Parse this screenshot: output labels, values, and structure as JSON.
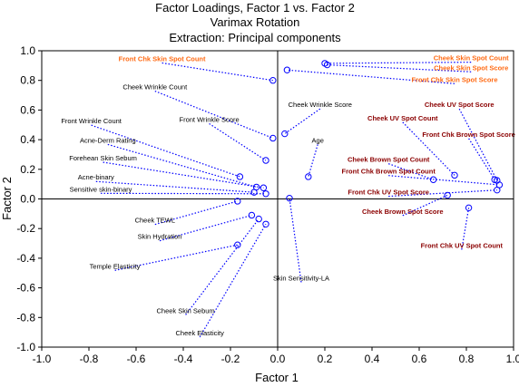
{
  "colors": {
    "marker": "#0000ff",
    "leader": "#0000ff",
    "label_default": "#000000",
    "label_red": "#8b0000",
    "label_orange": "#ff6a13",
    "axis": "#000000",
    "grid": "#c8c8c8"
  },
  "chart_data": {
    "type": "scatter",
    "title": "Factor Loadings, Factor 1 vs. Factor 2",
    "subtitle": "Varimax Rotation",
    "subtitle2": "Extraction: Principal components",
    "xlabel": "Factor 1",
    "ylabel": "Factor 2",
    "xlim": [
      -1.0,
      1.0
    ],
    "ylim": [
      -1.0,
      1.0
    ],
    "xticks": [
      -1.0,
      -0.8,
      -0.6,
      -0.4,
      -0.2,
      0.0,
      0.2,
      0.4,
      0.6,
      0.8,
      1.0
    ],
    "yticks": [
      -1.0,
      -0.8,
      -0.6,
      -0.4,
      -0.2,
      0.0,
      0.2,
      0.4,
      0.6,
      0.8,
      1.0
    ],
    "xtick_labels": [
      "-1.0",
      "-0.8",
      "-0.6",
      "-0.4",
      "-0.2",
      "0.0",
      "0.2",
      "0.4",
      "0.6",
      "0.8",
      "1.0"
    ],
    "ytick_labels": [
      "-1.0",
      "-0.8",
      "-0.6",
      "-0.4",
      "-0.2",
      "0.0",
      "0.2",
      "0.4",
      "0.6",
      "0.8",
      "1.0"
    ],
    "grid": false,
    "reference_lines": {
      "x": 0,
      "y": 0
    },
    "points": [
      {
        "label": "Front Chk Skin Spot Count",
        "x": -0.02,
        "y": 0.8,
        "lx": -0.49,
        "ly": 0.93,
        "color": "orange",
        "bold": true
      },
      {
        "label": "Cheek Wrinkle Count",
        "x": -0.02,
        "y": 0.41,
        "lx": -0.52,
        "ly": 0.74,
        "color": "default",
        "bold": false
      },
      {
        "label": "Front Wrinkle Score",
        "x": -0.05,
        "y": 0.26,
        "lx": -0.29,
        "ly": 0.52,
        "color": "default",
        "bold": false
      },
      {
        "label": "Front Wrinkle Count",
        "x": -0.16,
        "y": 0.15,
        "lx": -0.79,
        "ly": 0.51,
        "color": "default",
        "bold": false
      },
      {
        "label": "Acne-Derm Rating",
        "x": -0.09,
        "y": 0.08,
        "lx": -0.72,
        "ly": 0.38,
        "color": "default",
        "bold": false
      },
      {
        "label": "Forehean Skin Sebum",
        "x": -0.06,
        "y": 0.075,
        "lx": -0.74,
        "ly": 0.26,
        "color": "default",
        "bold": false
      },
      {
        "label": "Acne-binary",
        "x": -0.1,
        "y": 0.045,
        "lx": -0.77,
        "ly": 0.13,
        "color": "default",
        "bold": false
      },
      {
        "label": "Sensitive skin-binary",
        "x": -0.05,
        "y": 0.035,
        "lx": -0.75,
        "ly": 0.05,
        "color": "default",
        "bold": false
      },
      {
        "label": "Cheek TEWL",
        "x": -0.17,
        "y": -0.015,
        "lx": -0.52,
        "ly": -0.16,
        "color": "default",
        "bold": false
      },
      {
        "label": "Skin Hydration",
        "x": -0.11,
        "y": -0.11,
        "lx": -0.5,
        "ly": -0.27,
        "color": "default",
        "bold": false
      },
      {
        "label": "Temple Elasticity",
        "x": -0.17,
        "y": -0.31,
        "lx": -0.69,
        "ly": -0.47,
        "color": "default",
        "bold": false
      },
      {
        "label": "Cheek Skin Sebum",
        "x": -0.08,
        "y": -0.135,
        "lx": -0.39,
        "ly": -0.77,
        "color": "default",
        "bold": false
      },
      {
        "label": "Cheek Elasticity",
        "x": -0.05,
        "y": -0.17,
        "lx": -0.33,
        "ly": -0.92,
        "color": "default",
        "bold": false
      },
      {
        "label": "Skin Sensitivity-LA",
        "x": 0.05,
        "y": 0.005,
        "lx": 0.1,
        "ly": -0.55,
        "color": "default",
        "bold": false
      },
      {
        "label": "Cheek Wrinkle Score",
        "x": 0.03,
        "y": 0.44,
        "lx": 0.18,
        "ly": 0.62,
        "color": "default",
        "bold": false
      },
      {
        "label": "Age",
        "x": 0.13,
        "y": 0.15,
        "lx": 0.17,
        "ly": 0.38,
        "color": "default",
        "bold": false
      },
      {
        "label": "Cheek Skin Spot Count",
        "x": 0.2,
        "y": 0.915,
        "lx": 0.82,
        "ly": 0.935,
        "color": "orange",
        "bold": true
      },
      {
        "label": "Cheek Skin Spot Score",
        "x": 0.21,
        "y": 0.905,
        "lx": 0.82,
        "ly": 0.87,
        "color": "orange",
        "bold": true
      },
      {
        "label": "Front Chk Skin Spot Score",
        "x": 0.04,
        "y": 0.87,
        "lx": 0.75,
        "ly": 0.79,
        "color": "orange",
        "bold": true
      },
      {
        "label": "Cheek UV Spot Score",
        "x": 0.93,
        "y": 0.125,
        "lx": 0.77,
        "ly": 0.62,
        "color": "red",
        "bold": true
      },
      {
        "label": "Cheek UV Spot Count",
        "x": 0.75,
        "y": 0.16,
        "lx": 0.53,
        "ly": 0.53,
        "color": "red",
        "bold": true
      },
      {
        "label": "Front Chk Brown Spot Score",
        "x": 0.92,
        "y": 0.13,
        "lx": 0.81,
        "ly": 0.42,
        "color": "red",
        "bold": true
      },
      {
        "label": "Cheek Brown Spot Count",
        "x": 0.66,
        "y": 0.13,
        "lx": 0.47,
        "ly": 0.25,
        "color": "red",
        "bold": true
      },
      {
        "label": "Front Chk  Brown Spot Count",
        "x": 0.94,
        "y": 0.095,
        "lx": 0.47,
        "ly": 0.17,
        "color": "red",
        "bold": true
      },
      {
        "label": "Front Chk  UV Spot Score",
        "x": 0.93,
        "y": 0.06,
        "lx": 0.47,
        "ly": 0.03,
        "color": "red",
        "bold": true
      },
      {
        "label": "Cheek Brown Spot Score",
        "x": 0.72,
        "y": 0.025,
        "lx": 0.53,
        "ly": -0.1,
        "color": "red",
        "bold": true
      },
      {
        "label": "Front Chk  UV Spot Count",
        "x": 0.81,
        "y": -0.06,
        "lx": 0.78,
        "ly": -0.33,
        "color": "red",
        "bold": true
      }
    ]
  }
}
